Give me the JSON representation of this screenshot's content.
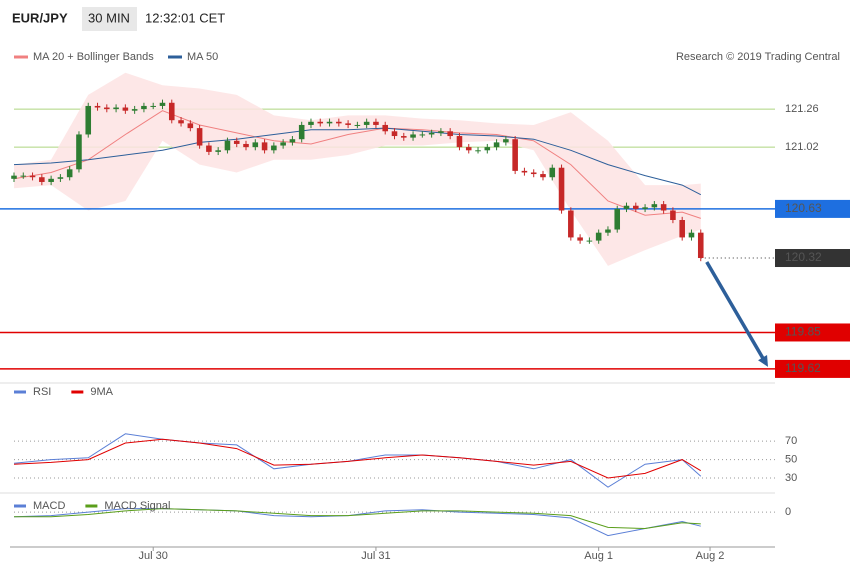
{
  "chart_data": {
    "type": "candlestick",
    "symbol": "EUR/JPY",
    "interval": "30 MIN",
    "time": "12:32:01 CET",
    "copyright": "Research © 2019 Trading Central",
    "xlim": [
      0,
      82
    ],
    "xticks": [
      {
        "value": 15,
        "label": "Jul 30"
      },
      {
        "value": 39,
        "label": "Jul 31"
      },
      {
        "value": 63,
        "label": "Aug 1"
      },
      {
        "value": 75,
        "label": "Aug 2"
      }
    ],
    "ylim": [
      119.55,
      121.57
    ],
    "yticks": [
      121.26,
      121.02
    ],
    "grid_color": "#8bc34a",
    "up_color": "#2e7d32",
    "down_color": "#c62828",
    "ohlc": {
      "open": [
        120.82,
        120.84,
        120.84,
        120.83,
        120.8,
        120.82,
        120.83,
        120.88,
        121.1,
        121.28,
        121.27,
        121.26,
        121.27,
        121.25,
        121.26,
        121.28,
        121.28,
        121.3,
        121.19,
        121.17,
        121.14,
        121.03,
        120.99,
        121.0,
        121.06,
        121.04,
        121.02,
        121.05,
        121.0,
        121.03,
        121.05,
        121.07,
        121.16,
        121.18,
        121.17,
        121.18,
        121.17,
        121.16,
        121.16,
        121.18,
        121.16,
        121.12,
        121.09,
        121.08,
        121.1,
        121.1,
        121.11,
        121.12,
        121.09,
        121.02,
        121.0,
        121.0,
        121.02,
        121.05,
        121.07,
        120.87,
        120.86,
        120.85,
        120.83,
        120.89,
        120.62,
        120.45,
        120.43,
        120.43,
        120.48,
        120.5,
        120.63,
        120.65,
        120.63,
        120.64,
        120.66,
        120.62,
        120.56,
        120.45,
        120.48
      ],
      "high": [
        120.86,
        120.86,
        120.86,
        120.85,
        120.84,
        120.85,
        120.9,
        121.12,
        121.3,
        121.3,
        121.29,
        121.29,
        121.29,
        121.28,
        121.3,
        121.3,
        121.32,
        121.32,
        121.21,
        121.19,
        121.16,
        121.05,
        121.02,
        121.08,
        121.08,
        121.06,
        121.07,
        121.07,
        121.05,
        121.07,
        121.09,
        121.18,
        121.2,
        121.2,
        121.2,
        121.2,
        121.19,
        121.18,
        121.2,
        121.2,
        121.18,
        121.14,
        121.11,
        121.12,
        121.12,
        121.13,
        121.14,
        121.14,
        121.11,
        121.04,
        121.02,
        121.04,
        121.07,
        121.09,
        121.09,
        120.89,
        120.88,
        120.87,
        120.91,
        120.91,
        120.64,
        120.47,
        120.45,
        120.5,
        120.52,
        120.65,
        120.67,
        120.67,
        120.66,
        120.68,
        120.68,
        120.64,
        120.58,
        120.5,
        120.5
      ],
      "low": [
        120.8,
        120.82,
        120.81,
        120.78,
        120.78,
        120.8,
        120.81,
        120.86,
        121.08,
        121.25,
        121.24,
        121.24,
        121.23,
        121.23,
        121.24,
        121.26,
        121.26,
        121.17,
        121.15,
        121.12,
        121.01,
        120.97,
        120.97,
        120.98,
        121.02,
        121.0,
        121.0,
        120.98,
        120.98,
        121.01,
        121.03,
        121.05,
        121.14,
        121.15,
        121.15,
        121.15,
        121.14,
        121.14,
        121.14,
        121.14,
        121.1,
        121.07,
        121.06,
        121.06,
        121.08,
        121.08,
        121.09,
        121.07,
        121.0,
        120.98,
        120.98,
        120.98,
        121.0,
        121.03,
        120.85,
        120.84,
        120.83,
        120.81,
        120.81,
        120.6,
        120.43,
        120.41,
        120.41,
        120.41,
        120.46,
        120.48,
        120.61,
        120.61,
        120.61,
        120.62,
        120.6,
        120.54,
        120.43,
        120.43,
        120.3
      ],
      "close": [
        120.84,
        120.84,
        120.83,
        120.8,
        120.82,
        120.83,
        120.88,
        121.1,
        121.28,
        121.27,
        121.26,
        121.27,
        121.25,
        121.26,
        121.28,
        121.28,
        121.3,
        121.19,
        121.17,
        121.14,
        121.03,
        120.99,
        121.0,
        121.06,
        121.04,
        121.02,
        121.05,
        121.0,
        121.03,
        121.05,
        121.07,
        121.16,
        121.18,
        121.17,
        121.18,
        121.17,
        121.16,
        121.16,
        121.18,
        121.16,
        121.12,
        121.09,
        121.08,
        121.1,
        121.1,
        121.11,
        121.12,
        121.09,
        121.02,
        121.0,
        121.0,
        121.02,
        121.05,
        121.07,
        120.87,
        120.86,
        120.85,
        120.83,
        120.89,
        120.62,
        120.45,
        120.43,
        120.43,
        120.48,
        120.5,
        120.63,
        120.65,
        120.63,
        120.64,
        120.66,
        120.62,
        120.56,
        120.45,
        120.48,
        120.32
      ]
    },
    "line_x": [
      0,
      4,
      8,
      12,
      16,
      20,
      24,
      28,
      32,
      36,
      40,
      44,
      48,
      52,
      56,
      60,
      64,
      68,
      72,
      74
    ],
    "bollinger": {
      "name": "MA 20 + Bollinger Bands",
      "color": "#f08080",
      "band_color": "#fde3e3",
      "values": [
        120.82,
        120.86,
        120.94,
        121.1,
        121.25,
        121.16,
        121.11,
        121.06,
        121.04,
        121.1,
        121.14,
        121.13,
        121.11,
        121.1,
        121.06,
        120.91,
        120.68,
        120.59,
        120.61,
        120.57
      ],
      "upper": [
        120.91,
        120.94,
        121.35,
        121.49,
        121.41,
        121.39,
        121.35,
        121.22,
        121.19,
        121.22,
        121.22,
        121.2,
        121.19,
        121.17,
        121.16,
        121.24,
        121.06,
        120.78,
        120.78,
        120.79
      ],
      "lower": [
        120.76,
        120.78,
        120.62,
        120.68,
        121.06,
        120.91,
        120.86,
        120.94,
        120.94,
        120.97,
        121.03,
        121.03,
        121.05,
        121.06,
        121.0,
        120.62,
        120.27,
        120.37,
        120.46,
        120.5
      ]
    },
    "ma50": {
      "name": "MA 50",
      "color": "#2d5f9a",
      "values": [
        120.91,
        120.92,
        120.94,
        120.97,
        121.0,
        121.05,
        121.07,
        121.1,
        121.13,
        121.13,
        121.14,
        121.12,
        121.1,
        121.09,
        121.07,
        121.0,
        120.91,
        120.84,
        120.78,
        120.72
      ]
    },
    "levels": [
      {
        "value": 120.63,
        "color": "#1e6fe0",
        "dashed": false
      },
      {
        "value": 120.32,
        "color": "#333333",
        "dashed": true
      },
      {
        "value": 119.85,
        "color": "#e00000",
        "dashed": false
      },
      {
        "value": 119.62,
        "color": "#e00000",
        "dashed": false
      }
    ],
    "arrow_color": "#2d5f9a",
    "rsi": {
      "ylim": [
        17,
        93
      ],
      "yticks": [
        70,
        50,
        30
      ],
      "series": [
        {
          "name": "RSI",
          "color": "#5b7fd6",
          "values": [
            46,
            50,
            52,
            78,
            72,
            68,
            66,
            40,
            45,
            48,
            55,
            55,
            52,
            48,
            40,
            50,
            20,
            45,
            50,
            32
          ]
        },
        {
          "name": "9MA",
          "color": "#e00000",
          "values": [
            45,
            47,
            50,
            68,
            72,
            68,
            62,
            44,
            45,
            48,
            52,
            55,
            52,
            48,
            44,
            48,
            30,
            35,
            50,
            38
          ]
        }
      ]
    },
    "macd": {
      "ylim": [
        -28,
        12
      ],
      "yticks": [
        0
      ],
      "series": [
        {
          "name": "MACD",
          "color": "#5b7fd6",
          "values": [
            -4,
            -3,
            0,
            3,
            3,
            2,
            1,
            -3,
            -4,
            -3,
            1,
            2,
            0,
            -1,
            -2,
            -5,
            -20,
            -14,
            -8,
            -12
          ]
        },
        {
          "name": "MACD Signal",
          "color": "#5a9e1a",
          "values": [
            -4,
            -4,
            -2,
            1,
            3,
            2,
            1,
            -1,
            -3,
            -3,
            -1,
            1,
            1,
            0,
            -1,
            -3,
            -13,
            -14,
            -9,
            -10
          ]
        }
      ]
    }
  }
}
